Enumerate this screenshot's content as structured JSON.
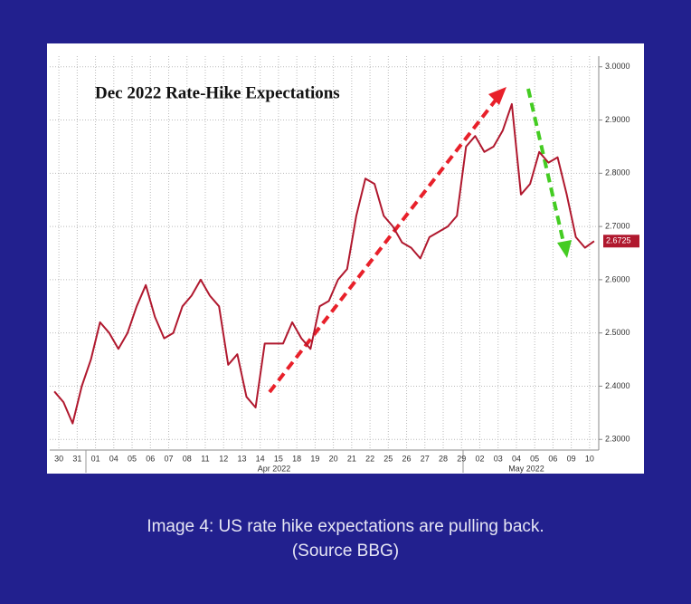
{
  "chart_data": {
    "type": "line",
    "title": "Dec 2022 Rate-Hike Expectations",
    "categories": [
      "30",
      null,
      "31",
      null,
      "01",
      null,
      "04",
      null,
      "05",
      null,
      "06",
      null,
      "07",
      null,
      "08",
      null,
      "11",
      null,
      "12",
      null,
      "13",
      null,
      "14",
      null,
      "15",
      null,
      "18",
      null,
      "19",
      null,
      "20",
      null,
      "21",
      null,
      "22",
      null,
      "25",
      null,
      "26",
      null,
      "27",
      null,
      "28",
      null,
      "29",
      null,
      "02",
      null,
      "03",
      null,
      "04",
      null,
      "05",
      null,
      "06",
      null,
      "09",
      null,
      "10",
      null
    ],
    "month_labels": [
      "Apr 2022",
      "May 2022"
    ],
    "values": [
      2.39,
      2.37,
      2.33,
      2.4,
      2.45,
      2.52,
      2.5,
      2.47,
      2.5,
      2.55,
      2.59,
      2.53,
      2.49,
      2.5,
      2.55,
      2.57,
      2.6,
      2.57,
      2.55,
      2.44,
      2.46,
      2.38,
      2.36,
      2.48,
      2.48,
      2.48,
      2.52,
      2.49,
      2.47,
      2.55,
      2.56,
      2.6,
      2.62,
      2.72,
      2.79,
      2.78,
      2.72,
      2.7,
      2.67,
      2.66,
      2.64,
      2.68,
      2.69,
      2.7,
      2.72,
      2.85,
      2.87,
      2.84,
      2.85,
      2.88,
      2.93,
      2.76,
      2.78,
      2.84,
      2.82,
      2.83,
      2.76,
      2.68,
      2.66,
      2.6725
    ],
    "color": "#b0182e",
    "ylim": [
      2.28,
      3.02
    ],
    "yticks": [
      {
        "value": 2.3,
        "label": "2.3000"
      },
      {
        "value": 2.4,
        "label": "2.4000"
      },
      {
        "value": 2.5,
        "label": "2.5000"
      },
      {
        "value": 2.6,
        "label": "2.6000"
      },
      {
        "value": 2.7,
        "label": "2.7000"
      },
      {
        "value": 2.8,
        "label": "2.8000"
      },
      {
        "value": 2.9,
        "label": "2.9000"
      },
      {
        "value": 3.0,
        "label": "3.0000"
      }
    ],
    "grid": true
  },
  "caption": [
    "Image 4: US rate hike expectations are pulling back.",
    "(Source BBG)"
  ]
}
